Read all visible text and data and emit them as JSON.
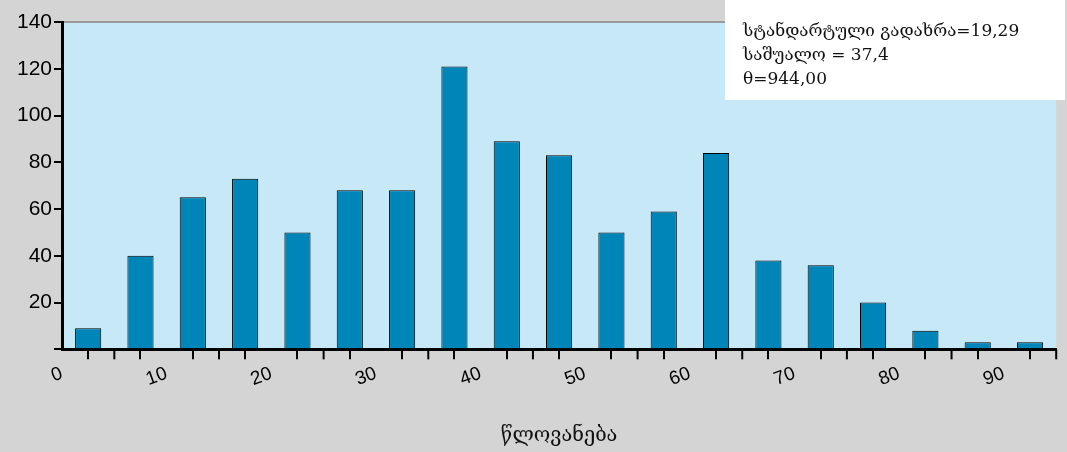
{
  "chart_data": {
    "type": "histogram",
    "xlabel": "წლოვანება",
    "bins": [
      0,
      5,
      10,
      15,
      20,
      25,
      30,
      35,
      40,
      45,
      50,
      55,
      60,
      65,
      70,
      75,
      80,
      85,
      90,
      95
    ],
    "values": [
      9,
      40,
      65,
      73,
      50,
      68,
      68,
      121,
      89,
      83,
      50,
      59,
      84,
      38,
      36,
      20,
      8,
      3,
      3
    ],
    "color": "#0085b8",
    "xlim": [
      0,
      95
    ],
    "xticks": [
      0,
      {
        "value": 5,
        "label": null
      },
      10,
      {
        "value": 15,
        "label": null
      },
      20,
      {
        "value": 25,
        "label": null
      },
      30,
      {
        "value": 35,
        "label": null
      },
      40,
      {
        "value": 45,
        "label": null
      },
      50,
      {
        "value": 55,
        "label": null
      },
      60,
      {
        "value": 65,
        "label": null
      },
      70,
      {
        "value": 75,
        "label": null
      },
      80,
      {
        "value": 85,
        "label": null
      },
      90,
      {
        "value": 95,
        "label": null
      }
    ],
    "ylim": [
      0,
      140
    ],
    "yticks": [
      {
        "value": 0,
        "label": null
      },
      20,
      40,
      60,
      80,
      100,
      120,
      140
    ],
    "grid": false,
    "legend": false,
    "annotations": [
      "სტანდარტული გადახრა=19,29",
      "საშუალო = 37,4",
      "θ=944,00"
    ]
  }
}
